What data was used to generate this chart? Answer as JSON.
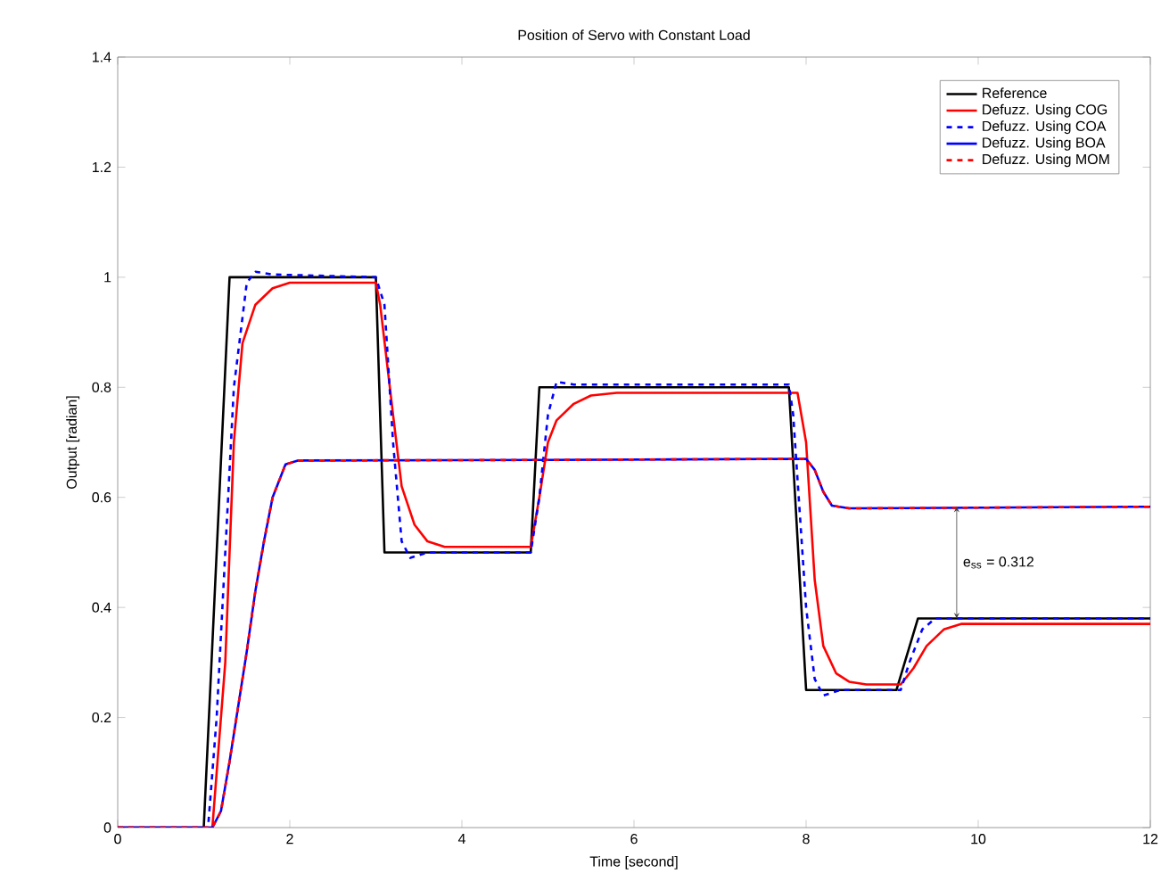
{
  "chart_data": {
    "type": "line",
    "title": "Position of Servo with Constant Load",
    "xlabel": "Time [second]",
    "ylabel": "Output [radian]",
    "xlim": [
      0,
      12
    ],
    "xticks": [
      0,
      2,
      4,
      6,
      8,
      10,
      12
    ],
    "ylim": [
      0,
      1.4
    ],
    "yticks": [
      0,
      0.2,
      0.4,
      0.6,
      0.8,
      1,
      1.2,
      1.4
    ],
    "grid": false,
    "legend": "top right",
    "marker": "none",
    "annotations": [
      "e$_{ss}$ = 0.312"
    ],
    "series": [
      {
        "name": "Reference",
        "color": "#000000",
        "line_style": "solid",
        "x": [
          0,
          1.0,
          1.3,
          3.0,
          3.1,
          4.8,
          4.9,
          7.8,
          8.0,
          9.05,
          9.3,
          12
        ],
        "values": [
          0,
          0,
          1,
          1,
          0.5,
          0.5,
          0.8,
          0.8,
          0.25,
          0.25,
          0.38,
          0.38
        ]
      },
      {
        "name": "Defuzz. Using COG",
        "color": "#ff0000",
        "line_style": "solid",
        "x": [
          0,
          1.1,
          1.25,
          1.35,
          1.45,
          1.6,
          1.8,
          2.0,
          3.0,
          3.05,
          3.2,
          3.3,
          3.45,
          3.6,
          3.8,
          4.8,
          4.9,
          5.0,
          5.1,
          5.3,
          5.5,
          5.8,
          7.9,
          8.0,
          8.1,
          8.2,
          8.35,
          8.5,
          8.7,
          9.1,
          9.25,
          9.4,
          9.6,
          9.8,
          12
        ],
        "values": [
          0,
          0,
          0.3,
          0.7,
          0.88,
          0.95,
          0.98,
          0.99,
          0.99,
          0.95,
          0.75,
          0.62,
          0.55,
          0.52,
          0.51,
          0.51,
          0.6,
          0.7,
          0.74,
          0.77,
          0.785,
          0.79,
          0.79,
          0.7,
          0.45,
          0.33,
          0.28,
          0.265,
          0.26,
          0.26,
          0.29,
          0.33,
          0.36,
          0.37,
          0.37
        ]
      },
      {
        "name": "Defuzz. Using COA",
        "color": "#0000ff",
        "line_style": "dashed",
        "x": [
          0,
          1.05,
          1.15,
          1.35,
          1.5,
          1.6,
          1.8,
          3.0,
          3.1,
          3.2,
          3.3,
          3.4,
          3.6,
          4.8,
          4.9,
          5.0,
          5.1,
          5.3,
          7.8,
          7.85,
          8.0,
          8.1,
          8.2,
          8.4,
          9.1,
          9.2,
          9.35,
          9.5,
          12
        ],
        "values": [
          0,
          0,
          0.2,
          0.8,
          0.99,
          1.01,
          1.005,
          1.0,
          0.95,
          0.7,
          0.52,
          0.49,
          0.5,
          0.5,
          0.6,
          0.75,
          0.81,
          0.805,
          0.805,
          0.75,
          0.4,
          0.27,
          0.24,
          0.25,
          0.25,
          0.3,
          0.36,
          0.38,
          0.38
        ]
      },
      {
        "name": "Defuzz. Using BOA",
        "color": "#0000ff",
        "line_style": "solid",
        "x": [
          0,
          1.1,
          1.2,
          1.3,
          1.4,
          1.5,
          1.6,
          1.7,
          1.8,
          1.95,
          2.1,
          5,
          8.0,
          8.1,
          8.2,
          8.3,
          8.5,
          12
        ],
        "values": [
          0,
          0,
          0.03,
          0.12,
          0.22,
          0.32,
          0.43,
          0.52,
          0.6,
          0.66,
          0.667,
          0.668,
          0.67,
          0.65,
          0.61,
          0.585,
          0.58,
          0.583
        ]
      },
      {
        "name": "Defuzz. Using MOM",
        "color": "#ff0000",
        "line_style": "dashed",
        "x": [
          0,
          1.1,
          1.2,
          1.3,
          1.4,
          1.5,
          1.6,
          1.7,
          1.8,
          1.95,
          2.1,
          5,
          8.0,
          8.1,
          8.2,
          8.3,
          8.5,
          12
        ],
        "values": [
          0,
          0,
          0.03,
          0.12,
          0.22,
          0.32,
          0.43,
          0.52,
          0.6,
          0.66,
          0.667,
          0.668,
          0.67,
          0.65,
          0.61,
          0.585,
          0.58,
          0.583
        ]
      }
    ]
  }
}
